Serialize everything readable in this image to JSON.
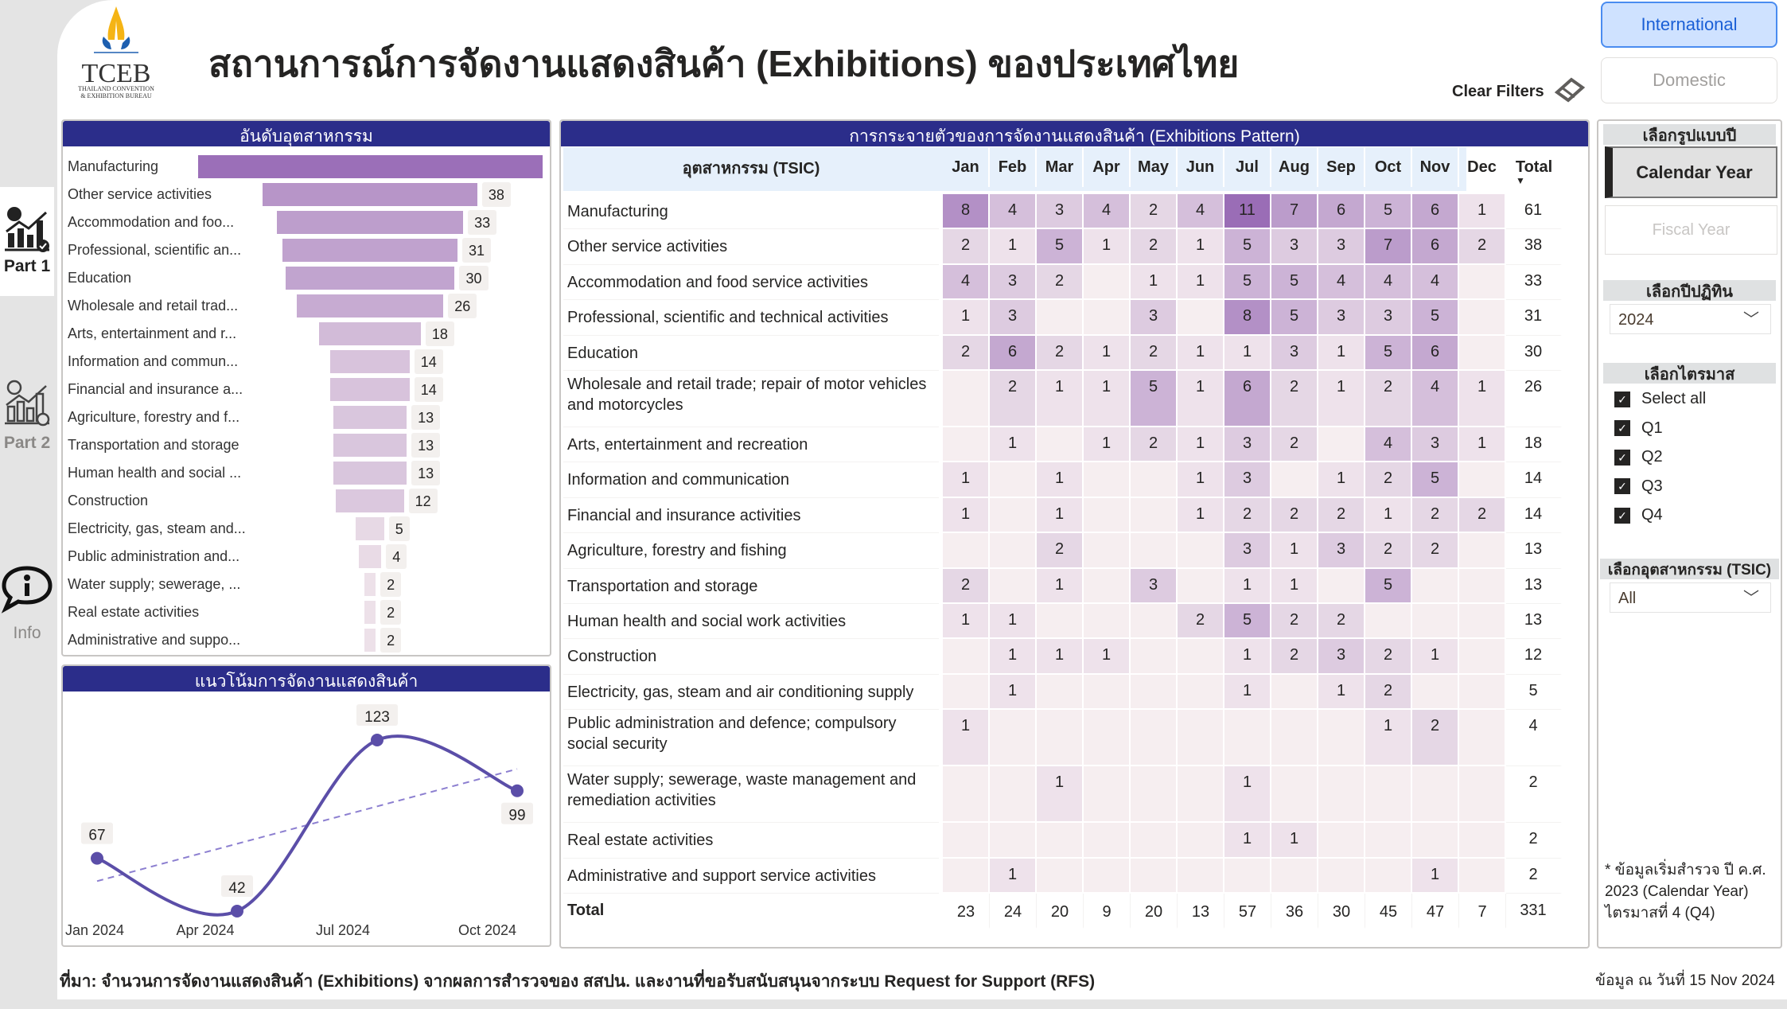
{
  "header": {
    "title": "สถานการณ์การจัดงานแสดงสินค้า (Exhibitions) ของประเทศไทย",
    "logo_text": "TCEB",
    "logo_sub1": "THAILAND CONVENTION",
    "logo_sub2": "& EXHIBITION BUREAU",
    "clear_filters": "Clear Filters"
  },
  "toggle": {
    "international": "International",
    "domestic": "Domestic",
    "active": "International",
    "accent": "#cfe2ff"
  },
  "nav": [
    {
      "label": "Part 1",
      "icon": "chart-check-icon",
      "active": true
    },
    {
      "label": "Part 2",
      "icon": "chart-check-outline-icon",
      "active": false
    },
    {
      "label": "Info",
      "icon": "info-bubble-icon",
      "active": false
    }
  ],
  "ranking": {
    "title": "อันดับอุตสาหกรรม",
    "items": [
      {
        "label": "Manufacturing",
        "value": 61
      },
      {
        "label": "Other service activities",
        "value": 38
      },
      {
        "label": "Accommodation and foo...",
        "value": 33
      },
      {
        "label": "Professional, scientific an...",
        "value": 31
      },
      {
        "label": "Education",
        "value": 30
      },
      {
        "label": "Wholesale and retail trad...",
        "value": 26
      },
      {
        "label": "Arts, entertainment and r...",
        "value": 18
      },
      {
        "label": "Information and commun...",
        "value": 14
      },
      {
        "label": "Financial and insurance a...",
        "value": 14
      },
      {
        "label": "Agriculture, forestry and f...",
        "value": 13
      },
      {
        "label": "Transportation and storage",
        "value": 13
      },
      {
        "label": "Human health and social ...",
        "value": 13
      },
      {
        "label": "Construction",
        "value": 12
      },
      {
        "label": "Electricity, gas, steam and...",
        "value": 5
      },
      {
        "label": "Public administration and...",
        "value": 4
      },
      {
        "label": "Water supply; sewerage, ...",
        "value": 2
      },
      {
        "label": "Real estate activities",
        "value": 2
      },
      {
        "label": "Administrative and suppo...",
        "value": 2
      }
    ]
  },
  "trend": {
    "title": "แนวโน้มการจัดงานแสดงสินค้า",
    "color": "#5b4ea8",
    "chart_data": {
      "type": "line",
      "categories": [
        "Jan 2024",
        "Apr 2024",
        "Jul 2024",
        "Oct 2024"
      ],
      "values": [
        67,
        42,
        123,
        99
      ],
      "trendline": true
    }
  },
  "pattern": {
    "title": "การกระจายตัวของการจัดงานแสดงสินค้า (Exhibitions Pattern)",
    "col_header": "อุตสาหกรรม (TSIC)",
    "months": [
      "Jan",
      "Feb",
      "Mar",
      "Apr",
      "May",
      "Jun",
      "Jul",
      "Aug",
      "Sep",
      "Oct",
      "Nov",
      "Dec"
    ],
    "total_label": "Total",
    "color_min": "#f6eef0",
    "color_max": "#9a6db6",
    "rows": [
      {
        "name": "Manufacturing",
        "v": [
          8,
          4,
          3,
          4,
          2,
          4,
          11,
          7,
          6,
          5,
          6,
          1
        ],
        "total": 61
      },
      {
        "name": "Other service activities",
        "v": [
          2,
          1,
          5,
          1,
          2,
          1,
          5,
          3,
          3,
          7,
          6,
          2
        ],
        "total": 38
      },
      {
        "name": "Accommodation and food service activities",
        "v": [
          4,
          3,
          2,
          null,
          1,
          1,
          5,
          5,
          4,
          4,
          4,
          null
        ],
        "total": 33
      },
      {
        "name": "Professional, scientific and technical activities",
        "v": [
          1,
          3,
          null,
          null,
          3,
          null,
          8,
          5,
          3,
          3,
          5,
          null
        ],
        "total": 31
      },
      {
        "name": "Education",
        "v": [
          2,
          6,
          2,
          1,
          2,
          1,
          1,
          3,
          1,
          5,
          6,
          null
        ],
        "total": 30
      },
      {
        "name": "Wholesale and retail trade; repair of motor vehicles and motorcycles",
        "v": [
          null,
          2,
          1,
          1,
          5,
          1,
          6,
          2,
          1,
          2,
          4,
          1
        ],
        "total": 26
      },
      {
        "name": "Arts, entertainment and recreation",
        "v": [
          null,
          1,
          null,
          1,
          2,
          1,
          3,
          2,
          null,
          4,
          3,
          1
        ],
        "total": 18
      },
      {
        "name": "Information and communication",
        "v": [
          1,
          null,
          1,
          null,
          null,
          1,
          3,
          null,
          1,
          2,
          5,
          null
        ],
        "total": 14
      },
      {
        "name": "Financial and insurance activities",
        "v": [
          1,
          null,
          1,
          null,
          null,
          1,
          2,
          2,
          2,
          1,
          2,
          2
        ],
        "total": 14
      },
      {
        "name": "Agriculture, forestry and fishing",
        "v": [
          null,
          null,
          2,
          null,
          null,
          null,
          3,
          1,
          3,
          2,
          2,
          null
        ],
        "total": 13
      },
      {
        "name": "Transportation and storage",
        "v": [
          2,
          null,
          1,
          null,
          3,
          null,
          1,
          1,
          null,
          5,
          null,
          null
        ],
        "total": 13
      },
      {
        "name": "Human health and social work activities",
        "v": [
          1,
          1,
          null,
          null,
          null,
          2,
          5,
          2,
          2,
          null,
          null,
          null
        ],
        "total": 13
      },
      {
        "name": "Construction",
        "v": [
          null,
          1,
          1,
          1,
          null,
          null,
          1,
          2,
          3,
          2,
          1,
          null
        ],
        "total": 12
      },
      {
        "name": "Electricity, gas, steam and air conditioning supply",
        "v": [
          null,
          1,
          null,
          null,
          null,
          null,
          1,
          null,
          1,
          2,
          null,
          null
        ],
        "total": 5
      },
      {
        "name": "Public administration and defence; compulsory social security",
        "v": [
          1,
          null,
          null,
          null,
          null,
          null,
          null,
          null,
          null,
          1,
          2,
          null
        ],
        "total": 4
      },
      {
        "name": "Water supply; sewerage, waste management and remediation activities",
        "v": [
          null,
          null,
          1,
          null,
          null,
          null,
          1,
          null,
          null,
          null,
          null,
          null
        ],
        "total": 2
      },
      {
        "name": "Real estate activities",
        "v": [
          null,
          null,
          null,
          null,
          null,
          null,
          1,
          1,
          null,
          null,
          null,
          null
        ],
        "total": 2
      },
      {
        "name": "Administrative and support service activities",
        "v": [
          null,
          1,
          null,
          null,
          null,
          null,
          null,
          null,
          null,
          null,
          1,
          null
        ],
        "total": 2
      }
    ],
    "totals": {
      "label": "Total",
      "v": [
        23,
        24,
        20,
        9,
        20,
        13,
        57,
        36,
        30,
        45,
        47,
        7
      ],
      "total": 331
    }
  },
  "filters": {
    "year_type_title": "เลือกรูปแบบปี",
    "calendar": "Calendar Year",
    "fiscal": "Fiscal Year",
    "year_title": "เลือกปีปฏิทิน",
    "year_value": "2024",
    "quarter_title": "เลือกไตรมาส",
    "quarters": [
      {
        "label": "Select all",
        "checked": true
      },
      {
        "label": "Q1",
        "checked": true
      },
      {
        "label": "Q2",
        "checked": true
      },
      {
        "label": "Q3",
        "checked": true
      },
      {
        "label": "Q4",
        "checked": true
      }
    ],
    "tsic_title": "เลือกอุตสาหกรรม (TSIC)",
    "tsic_value": "All",
    "note": "* ข้อมูลเริ่มสำรวจ ปี ค.ศ. 2023 (Calendar Year) ไตรมาสที่ 4 (Q4)"
  },
  "footer": {
    "source": "ที่มา: จำนวนการจัดงานแสดงสินค้า (Exhibitions) จากผลการสำรวจของ สสปน. และงานที่ขอรับสนับสนุนจากระบบ Request for Support (RFS)",
    "date": "ข้อมูล ณ วันที่ 15 Nov 2024"
  }
}
